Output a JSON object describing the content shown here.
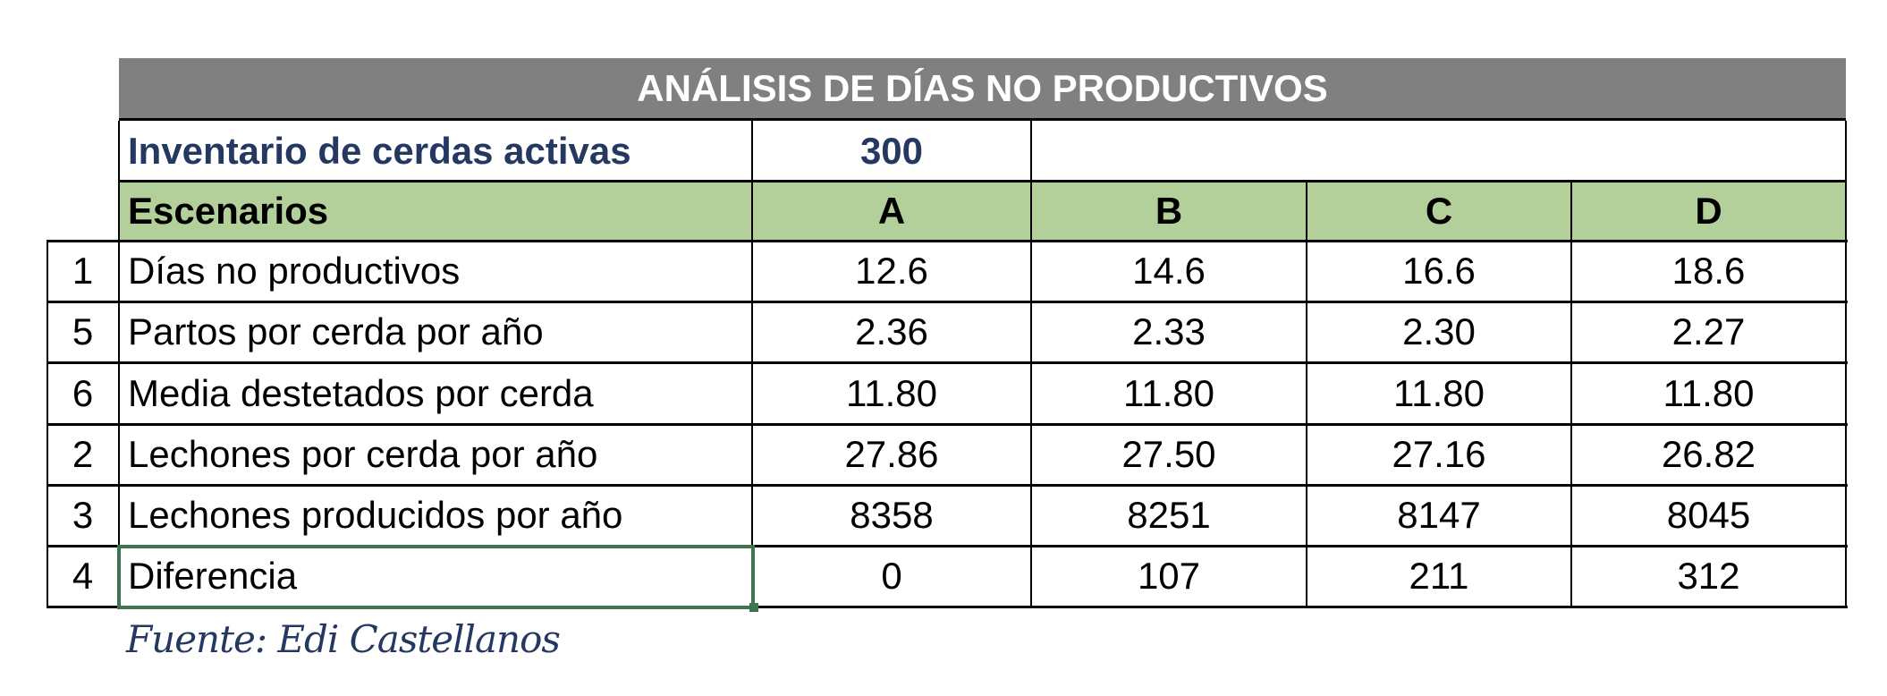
{
  "title": "ANÁLISIS DE DÍAS NO PRODUCTIVOS",
  "inventory": {
    "label": "Inventario de cerdas activas",
    "value": "300"
  },
  "header": {
    "label": "Escenarios",
    "columns": [
      "A",
      "B",
      "C",
      "D"
    ]
  },
  "rows": [
    {
      "index": "1",
      "label": "Días no productivos",
      "values": [
        "12.6",
        "14.6",
        "16.6",
        "18.6"
      ]
    },
    {
      "index": "5",
      "label": "Partos por cerda por año",
      "values": [
        "2.36",
        "2.33",
        "2.30",
        "2.27"
      ]
    },
    {
      "index": "6",
      "label": "Media destetados por cerda",
      "values": [
        "11.80",
        "11.80",
        "11.80",
        "11.80"
      ]
    },
    {
      "index": "2",
      "label": "Lechones por cerda por año",
      "values": [
        "27.86",
        "27.50",
        "27.16",
        "26.82"
      ]
    },
    {
      "index": "3",
      "label": "Lechones producidos por año",
      "values": [
        "8358",
        "8251",
        "8147",
        "8045"
      ]
    },
    {
      "index": "4",
      "label": "Diferencia",
      "values": [
        "0",
        "107",
        "211",
        "312"
      ]
    }
  ],
  "source": "Fuente: Edi Castellanos",
  "colors": {
    "title_bg": "#808080",
    "header_bg": "#b3d09a",
    "navy": "#253861",
    "selection": "#3e7550"
  }
}
